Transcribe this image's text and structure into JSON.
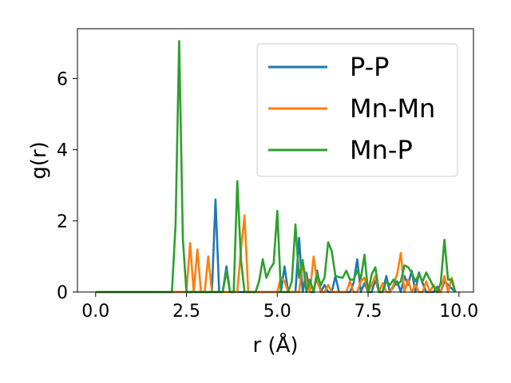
{
  "chart_data": {
    "type": "line",
    "title": "",
    "xlabel": "r (Å)",
    "ylabel": "g(r)",
    "xlim": [
      -0.5,
      10.4
    ],
    "ylim": [
      0,
      7.4
    ],
    "xticks": [
      0.0,
      2.5,
      5.0,
      7.5,
      10.0
    ],
    "xtick_labels": [
      "0.0",
      "2.5",
      "5.0",
      "7.5",
      "10.0"
    ],
    "yticks": [
      0,
      2,
      4,
      6
    ],
    "ytick_labels": [
      "0",
      "2",
      "4",
      "6"
    ],
    "grid": false,
    "legend_position": "top-right",
    "series": [
      {
        "name": "P-P",
        "color": "#1f77b4",
        "x": [
          0.0,
          3.1,
          3.2,
          3.3,
          3.4,
          3.5,
          3.6,
          3.7,
          3.8,
          3.9,
          4.0,
          4.2,
          4.4,
          4.6,
          4.7,
          4.8,
          4.9,
          5.0,
          5.1,
          5.2,
          5.3,
          5.4,
          5.5,
          5.6,
          5.7,
          5.8,
          5.9,
          6.0,
          6.1,
          6.2,
          6.3,
          6.4,
          6.5,
          6.6,
          6.7,
          6.8,
          6.9,
          7.0,
          7.1,
          7.2,
          7.3,
          7.4,
          7.5,
          7.6,
          7.7,
          7.8,
          7.9,
          8.0,
          8.1,
          8.2,
          8.3,
          8.4,
          8.5,
          8.6,
          8.7,
          8.8,
          8.9,
          9.0,
          9.1,
          9.2,
          9.3,
          9.4,
          9.5,
          9.6,
          9.7,
          9.8,
          9.9
        ],
        "y": [
          0.0,
          0.0,
          0.0,
          2.6,
          0.0,
          0.0,
          0.72,
          0.0,
          0.0,
          0.0,
          0.0,
          0.0,
          0.0,
          0.0,
          0.0,
          0.0,
          0.0,
          0.0,
          0.0,
          0.72,
          0.0,
          0.0,
          0.0,
          1.52,
          0.0,
          0.55,
          0.0,
          0.0,
          0.6,
          0.0,
          0.2,
          0.0,
          0.0,
          0.45,
          0.0,
          0.0,
          0.0,
          0.0,
          0.25,
          0.92,
          0.0,
          0.25,
          0.0,
          0.0,
          0.35,
          0.0,
          0.0,
          0.45,
          0.0,
          0.15,
          0.3,
          0.0,
          0.45,
          0.2,
          0.6,
          0.0,
          0.55,
          0.25,
          0.0,
          0.0,
          0.0,
          0.15,
          0.0,
          0.3,
          0.2,
          0.1,
          0.0
        ]
      },
      {
        "name": "Mn-Mn",
        "color": "#ff7f0e",
        "x": [
          0.0,
          2.5,
          2.6,
          2.7,
          2.8,
          2.9,
          3.0,
          3.1,
          3.2,
          3.3,
          3.4,
          3.5,
          3.6,
          3.7,
          3.8,
          3.9,
          4.0,
          4.1,
          4.2,
          4.3,
          5.0,
          5.1,
          5.2,
          5.3,
          5.4,
          5.5,
          5.6,
          5.7,
          5.8,
          5.9,
          6.0,
          6.1,
          6.2,
          6.3,
          6.4,
          6.5,
          6.6,
          6.7,
          6.8,
          6.9,
          7.0,
          7.1,
          7.2,
          7.3,
          7.4,
          7.5,
          7.6,
          7.7,
          7.8,
          7.9,
          8.0,
          8.1,
          8.2,
          8.3,
          8.4,
          8.5,
          8.6,
          8.7,
          8.8,
          8.9,
          9.0,
          9.1,
          9.2,
          9.3,
          9.4,
          9.5,
          9.6,
          9.7,
          9.8,
          9.9
        ],
        "y": [
          0.0,
          0.0,
          1.38,
          0.0,
          1.2,
          0.0,
          0.0,
          1.0,
          0.0,
          0.0,
          0.0,
          0.0,
          0.0,
          0.0,
          0.0,
          0.0,
          1.2,
          2.15,
          0.0,
          0.0,
          0.0,
          0.4,
          0.3,
          0.0,
          0.0,
          0.0,
          0.0,
          0.85,
          0.3,
          0.0,
          1.0,
          0.3,
          0.0,
          0.0,
          0.2,
          0.0,
          0.0,
          0.0,
          0.0,
          0.0,
          0.3,
          0.0,
          0.0,
          0.3,
          0.4,
          0.0,
          0.2,
          0.45,
          0.0,
          0.25,
          0.0,
          0.0,
          0.2,
          0.5,
          1.1,
          0.0,
          0.35,
          0.0,
          0.2,
          0.0,
          0.0,
          0.3,
          0.0,
          0.2,
          0.0,
          0.0,
          0.45,
          0.0,
          0.4,
          0.0
        ]
      },
      {
        "name": "Mn-P",
        "color": "#2ca02c",
        "x": [
          0.0,
          2.1,
          2.2,
          2.3,
          2.4,
          2.5,
          3.5,
          3.6,
          3.7,
          3.8,
          3.9,
          4.0,
          4.1,
          4.2,
          4.3,
          4.4,
          4.5,
          4.6,
          4.7,
          4.8,
          4.9,
          5.0,
          5.1,
          5.2,
          5.3,
          5.4,
          5.5,
          5.6,
          5.7,
          5.8,
          5.9,
          6.0,
          6.1,
          6.2,
          6.3,
          6.4,
          6.5,
          6.6,
          6.7,
          6.8,
          6.9,
          7.0,
          7.1,
          7.2,
          7.3,
          7.4,
          7.5,
          7.6,
          7.7,
          7.8,
          7.9,
          8.0,
          8.1,
          8.2,
          8.3,
          8.4,
          8.5,
          8.6,
          8.7,
          8.8,
          8.9,
          9.0,
          9.1,
          9.2,
          9.3,
          9.4,
          9.5,
          9.6,
          9.7,
          9.8,
          9.9
        ],
        "y": [
          0.0,
          0.0,
          1.9,
          7.05,
          1.5,
          0.0,
          0.0,
          0.6,
          0.0,
          0.0,
          3.12,
          0.9,
          0.0,
          0.0,
          0.0,
          0.0,
          0.3,
          0.92,
          0.4,
          0.65,
          0.8,
          2.28,
          0.0,
          0.0,
          0.0,
          0.3,
          1.9,
          0.4,
          0.9,
          0.0,
          0.35,
          0.0,
          0.5,
          0.2,
          0.4,
          1.4,
          1.15,
          0.45,
          0.42,
          0.4,
          0.6,
          0.35,
          0.35,
          0.6,
          0.38,
          1.05,
          0.0,
          0.5,
          0.7,
          0.0,
          0.0,
          0.3,
          0.2,
          0.35,
          0.2,
          0.3,
          0.75,
          0.7,
          0.55,
          0.3,
          0.5,
          0.3,
          0.55,
          0.35,
          0.15,
          0.0,
          0.25,
          1.47,
          0.35,
          0.35,
          0.0
        ]
      }
    ]
  }
}
